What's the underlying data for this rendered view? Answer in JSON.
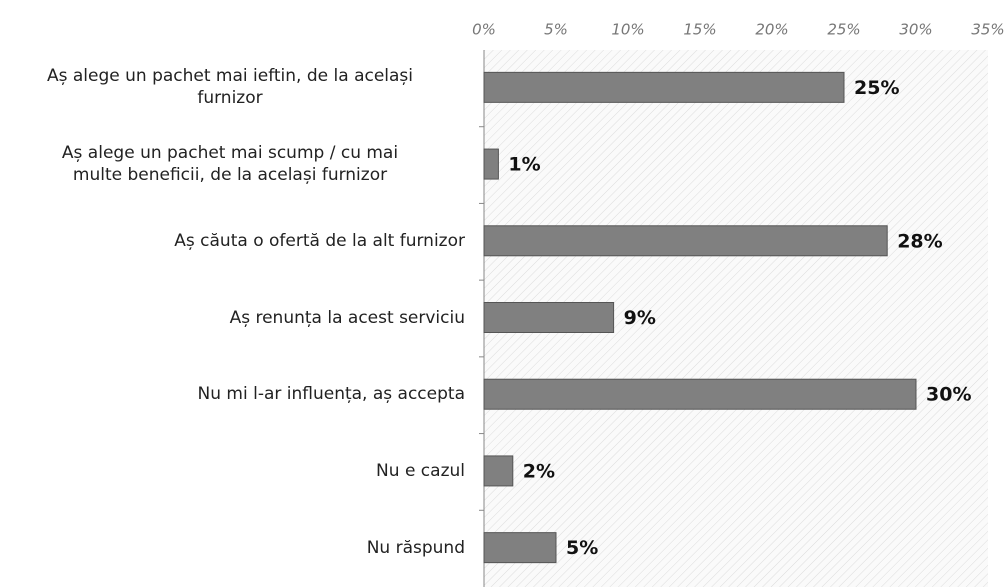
{
  "chart_data": {
    "type": "bar",
    "orientation": "horizontal",
    "categories": [
      "Aș alege un pachet mai ieftin, de la același\nfurnizor",
      "Aș alege un pachet mai scump / cu mai\nmulte beneficii, de la același furnizor",
      "Aș căuta o ofertă de la alt furnizor",
      "Aș renunța la acest serviciu",
      "Nu mi l-ar influența, aș accepta",
      "Nu e cazul",
      "Nu răspund"
    ],
    "values": [
      25,
      1,
      28,
      9,
      30,
      2,
      5
    ],
    "value_labels": [
      "25%",
      "1%",
      "28%",
      "9%",
      "30%",
      "2%",
      "5%"
    ],
    "color": "#808080",
    "xlim": [
      0,
      35
    ],
    "xticks": [
      {
        "value": 0,
        "label": "0%"
      },
      {
        "value": 5,
        "label": "5%"
      },
      {
        "value": 10,
        "label": "10%"
      },
      {
        "value": 15,
        "label": "15%"
      },
      {
        "value": 20,
        "label": "20%"
      },
      {
        "value": 25,
        "label": "25%"
      },
      {
        "value": 30,
        "label": "30%"
      },
      {
        "value": 35,
        "label": "35%"
      }
    ]
  }
}
